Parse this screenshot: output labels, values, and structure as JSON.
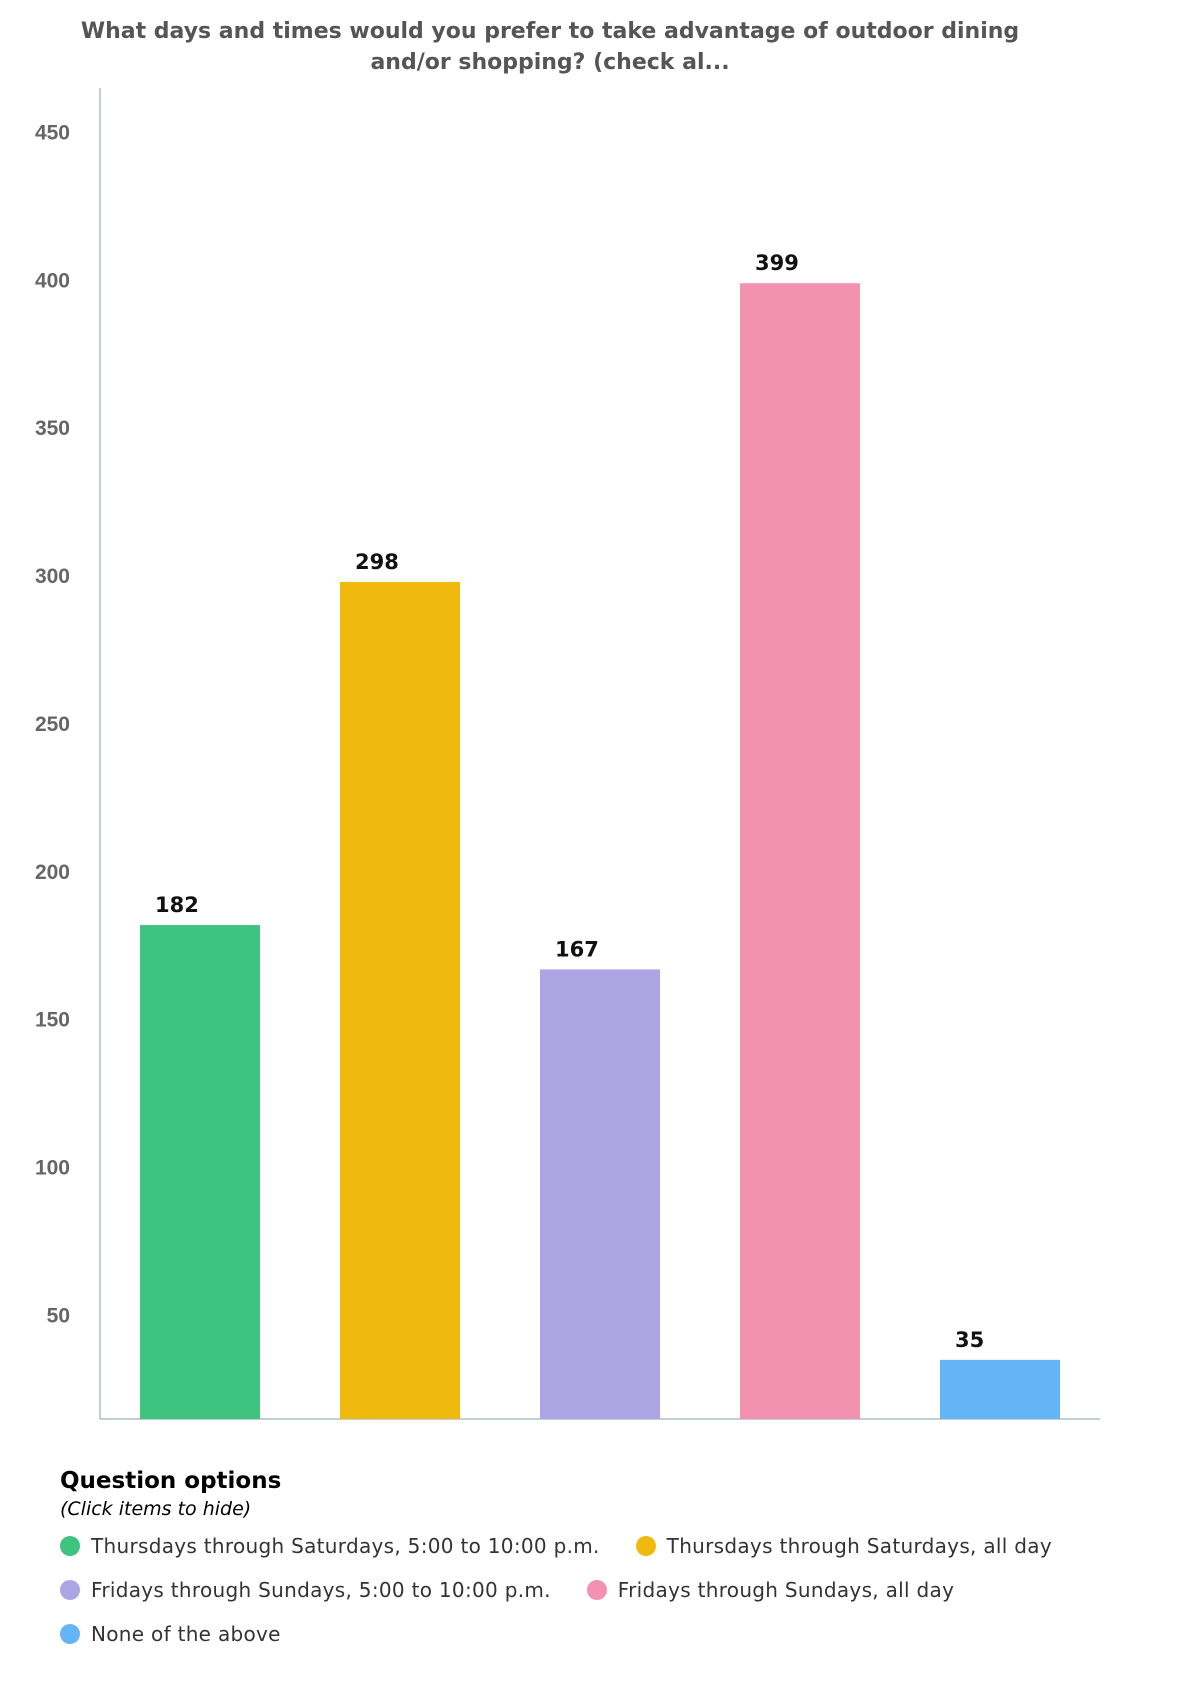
{
  "chart_data": {
    "type": "bar",
    "title": "What days and times would you prefer to take advantage of outdoor dining and/or shopping? (check al...",
    "categories": [
      "Thursdays through Saturdays, 5:00 to 10:00 p.m.",
      "Thursdays through Saturdays, all day",
      "Fridays through Sundays, 5:00 to 10:00 p.m.",
      "Fridays through Sundays, all day",
      "None of the above"
    ],
    "values": [
      182,
      298,
      167,
      399,
      35
    ],
    "colors": [
      "#3ec47f",
      "#efb90e",
      "#ada5e3",
      "#f391b0",
      "#64b5f6"
    ],
    "yticks": [
      50,
      100,
      150,
      200,
      250,
      300,
      350,
      400,
      450
    ],
    "ylim": [
      15,
      465
    ],
    "xlabel": "",
    "ylabel": "",
    "grid": false,
    "legend_position": "bottom"
  },
  "legend": {
    "title": "Question options",
    "hint": "(Click items to hide)"
  }
}
